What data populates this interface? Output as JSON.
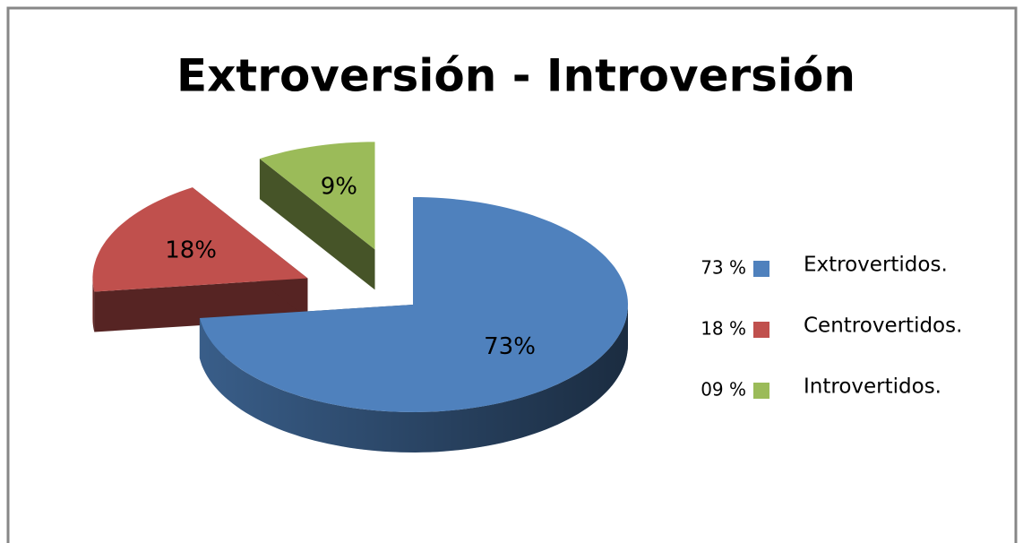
{
  "chart_data": {
    "type": "pie3d",
    "title": "Extroversión - Introversión",
    "categories": [
      "Extrovertidos.",
      "Centrovertidos.",
      "Introvertidos."
    ],
    "values": [
      73,
      18,
      9
    ],
    "value_labels": [
      "73%",
      "18%",
      "9%"
    ],
    "legend_labels": [
      "73 %",
      "18 %",
      "09 %"
    ],
    "colors": [
      "#4f81bd",
      "#c0504d",
      "#9bbb59"
    ],
    "legend": "right"
  }
}
